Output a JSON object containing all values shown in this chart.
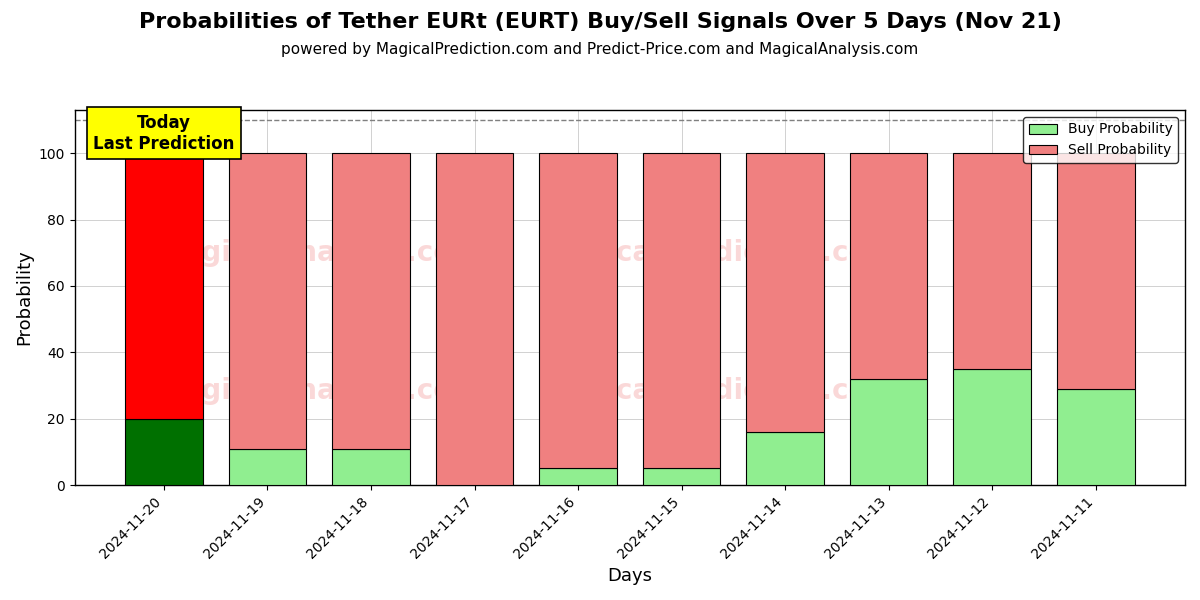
{
  "title": "Probabilities of Tether EURt (EURT) Buy/Sell Signals Over 5 Days (Nov 21)",
  "subtitle": "powered by MagicalPrediction.com and Predict-Price.com and MagicalAnalysis.com",
  "xlabel": "Days",
  "ylabel": "Probability",
  "categories": [
    "2024-11-20",
    "2024-11-19",
    "2024-11-18",
    "2024-11-17",
    "2024-11-16",
    "2024-11-15",
    "2024-11-14",
    "2024-11-13",
    "2024-11-12",
    "2024-11-11"
  ],
  "buy_values": [
    20,
    11,
    11,
    0,
    5,
    5,
    16,
    32,
    35,
    29
  ],
  "sell_values": [
    80,
    89,
    89,
    100,
    95,
    95,
    84,
    68,
    65,
    71
  ],
  "buy_color_today": "#007000",
  "sell_color_today": "#ff0000",
  "buy_color_normal": "#90ee90",
  "sell_color_normal": "#f08080",
  "today_annotation_text": "Today\nLast Prediction",
  "today_annotation_bg": "#ffff00",
  "legend_buy_label": "Buy Probability",
  "legend_sell_label": "Sell Probability",
  "ylim": [
    0,
    113
  ],
  "dashed_line_y": 110,
  "watermark_color": "#f08080",
  "watermark_alpha": 0.3,
  "bar_edge_color": "#000000",
  "bar_linewidth": 0.8,
  "title_fontsize": 16,
  "subtitle_fontsize": 11,
  "axis_label_fontsize": 13,
  "tick_fontsize": 10,
  "background_color": "#ffffff"
}
